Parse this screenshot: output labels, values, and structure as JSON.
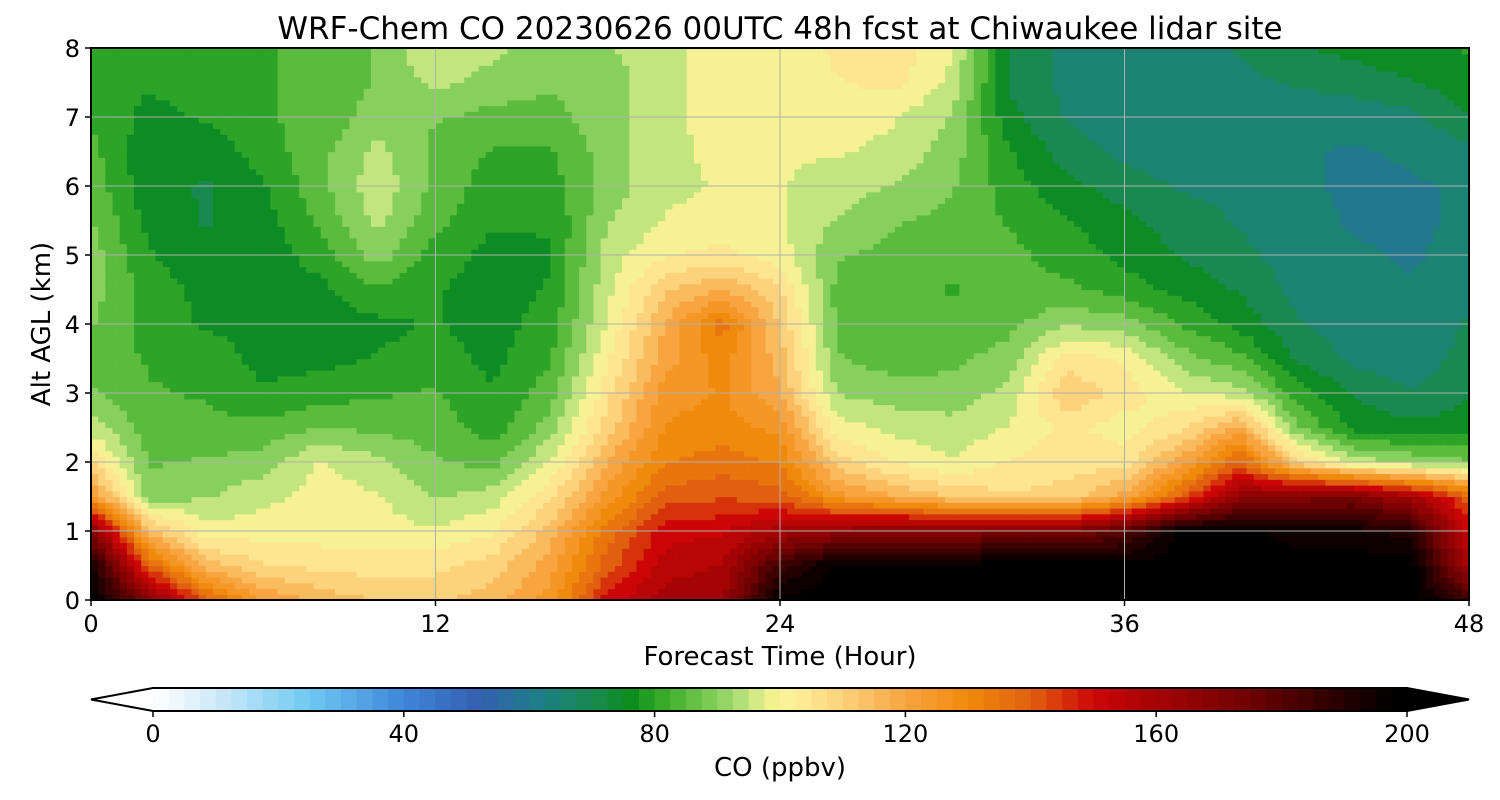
{
  "chart_data": {
    "type": "heatmap",
    "title": "WRF-Chem CO  20230626 00UTC 48h fcst at Chiwaukee lidar site",
    "xlabel": "Forecast Time (Hour)",
    "ylabel": "Alt AGL (km)",
    "xlim": [
      0,
      48
    ],
    "ylim": [
      0,
      8
    ],
    "x_ticks": [
      0,
      12,
      24,
      36,
      48
    ],
    "y_ticks": [
      0,
      1,
      2,
      3,
      4,
      5,
      6,
      7,
      8
    ],
    "grid": true,
    "colorbar": {
      "label": "CO  (ppbv)",
      "vmin": 0,
      "vmax": 200,
      "ticks": [
        0,
        40,
        80,
        120,
        160,
        200
      ],
      "extend": "both",
      "stops": [
        {
          "v": 0,
          "c": "#ffffff"
        },
        {
          "v": 10,
          "c": "#cfeaf8"
        },
        {
          "v": 25,
          "c": "#6ec8f2"
        },
        {
          "v": 40,
          "c": "#3f86d8"
        },
        {
          "v": 52,
          "c": "#3460b0"
        },
        {
          "v": 62,
          "c": "#1d7e86"
        },
        {
          "v": 71,
          "c": "#1a8a4a"
        },
        {
          "v": 76,
          "c": "#0a8c1c"
        },
        {
          "v": 82,
          "c": "#3fae2c"
        },
        {
          "v": 88,
          "c": "#74c84c"
        },
        {
          "v": 93,
          "c": "#a6dc74"
        },
        {
          "v": 98,
          "c": "#eef28c"
        },
        {
          "v": 102,
          "c": "#fef29a"
        },
        {
          "v": 110,
          "c": "#fcd27c"
        },
        {
          "v": 120,
          "c": "#f8a440"
        },
        {
          "v": 130,
          "c": "#f08a0c"
        },
        {
          "v": 140,
          "c": "#e06010"
        },
        {
          "v": 150,
          "c": "#cc0606"
        },
        {
          "v": 160,
          "c": "#a40404"
        },
        {
          "v": 175,
          "c": "#6e0202"
        },
        {
          "v": 188,
          "c": "#2e0000"
        },
        {
          "v": 198,
          "c": "#000000"
        }
      ]
    },
    "hours": [
      0,
      2,
      4,
      6,
      8,
      10,
      12,
      14,
      16,
      18,
      20,
      22,
      24,
      26,
      28,
      30,
      32,
      34,
      36,
      38,
      40,
      42,
      44,
      46,
      48
    ],
    "altitudes_km": [
      0,
      0.5,
      1,
      1.5,
      2,
      2.5,
      3,
      3.5,
      4,
      4.5,
      5,
      5.5,
      6,
      6.5,
      7,
      7.5,
      8
    ],
    "co_ppbv": [
      [
        200,
        170,
        140,
        122,
        116,
        112,
        112,
        115,
        125,
        150,
        160,
        162,
        200,
        200,
        200,
        200,
        200,
        200,
        200,
        200,
        200,
        200,
        200,
        200,
        185
      ],
      [
        195,
        140,
        115,
        108,
        106,
        105,
        106,
        110,
        120,
        140,
        155,
        158,
        185,
        200,
        200,
        200,
        200,
        200,
        200,
        200,
        200,
        200,
        200,
        200,
        160
      ],
      [
        170,
        115,
        100,
        100,
        100,
        100,
        98,
        102,
        115,
        135,
        150,
        152,
        160,
        165,
        170,
        168,
        172,
        170,
        180,
        200,
        200,
        195,
        195,
        190,
        150
      ],
      [
        125,
        90,
        92,
        96,
        100,
        98,
        92,
        95,
        106,
        125,
        140,
        142,
        140,
        125,
        118,
        112,
        108,
        110,
        120,
        140,
        165,
        170,
        172,
        160,
        140
      ],
      [
        108,
        87,
        88,
        90,
        98,
        94,
        88,
        86,
        98,
        118,
        132,
        135,
        132,
        110,
        102,
        98,
        103,
        105,
        105,
        120,
        140,
        110,
        95,
        92,
        88
      ],
      [
        95,
        85,
        84,
        84,
        88,
        86,
        85,
        80,
        90,
        110,
        128,
        130,
        126,
        100,
        96,
        94,
        98,
        104,
        100,
        106,
        120,
        88,
        76,
        74,
        75
      ],
      [
        88,
        83,
        82,
        78,
        80,
        82,
        83,
        78,
        85,
        106,
        125,
        128,
        118,
        92,
        90,
        90,
        94,
        112,
        105,
        98,
        95,
        80,
        72,
        68,
        72
      ],
      [
        86,
        82,
        80,
        76,
        76,
        78,
        80,
        76,
        82,
        102,
        120,
        130,
        115,
        88,
        85,
        86,
        90,
        105,
        102,
        90,
        84,
        72,
        66,
        64,
        70
      ],
      [
        88,
        80,
        77,
        76,
        75,
        76,
        78,
        75,
        80,
        98,
        118,
        135,
        112,
        86,
        84,
        84,
        86,
        92,
        90,
        82,
        76,
        68,
        65,
        63,
        68
      ],
      [
        90,
        80,
        76,
        75,
        76,
        82,
        78,
        75,
        78,
        96,
        112,
        118,
        108,
        86,
        84,
        82,
        84,
        84,
        80,
        76,
        72,
        66,
        64,
        63,
        66
      ],
      [
        90,
        78,
        74,
        74,
        80,
        90,
        80,
        76,
        77,
        95,
        102,
        104,
        100,
        88,
        86,
        84,
        84,
        80,
        76,
        72,
        69,
        65,
        63,
        62,
        64
      ],
      [
        88,
        76,
        72,
        75,
        84,
        94,
        84,
        78,
        78,
        92,
        98,
        100,
        98,
        92,
        88,
        86,
        82,
        78,
        74,
        70,
        67,
        64,
        62,
        62,
        63
      ],
      [
        86,
        74,
        72,
        77,
        86,
        96,
        86,
        80,
        80,
        90,
        96,
        98,
        98,
        95,
        92,
        88,
        80,
        74,
        70,
        67,
        66,
        63,
        62,
        62,
        63
      ],
      [
        84,
        74,
        74,
        80,
        86,
        94,
        86,
        82,
        82,
        90,
        96,
        99,
        98,
        98,
        96,
        90,
        78,
        70,
        66,
        64,
        64,
        63,
        62,
        63,
        66
      ],
      [
        82,
        76,
        78,
        82,
        84,
        90,
        88,
        86,
        86,
        90,
        96,
        100,
        98,
        100,
        98,
        92,
        74,
        67,
        64,
        63,
        63,
        64,
        64,
        66,
        72
      ],
      [
        80,
        78,
        80,
        82,
        84,
        88,
        94,
        90,
        88,
        90,
        96,
        100,
        98,
        102,
        104,
        96,
        72,
        66,
        64,
        64,
        66,
        68,
        70,
        72,
        76
      ],
      [
        80,
        80,
        82,
        82,
        84,
        88,
        98,
        94,
        90,
        92,
        96,
        100,
        98,
        104,
        106,
        98,
        72,
        66,
        65,
        66,
        68,
        72,
        74,
        76,
        78
      ]
    ]
  }
}
